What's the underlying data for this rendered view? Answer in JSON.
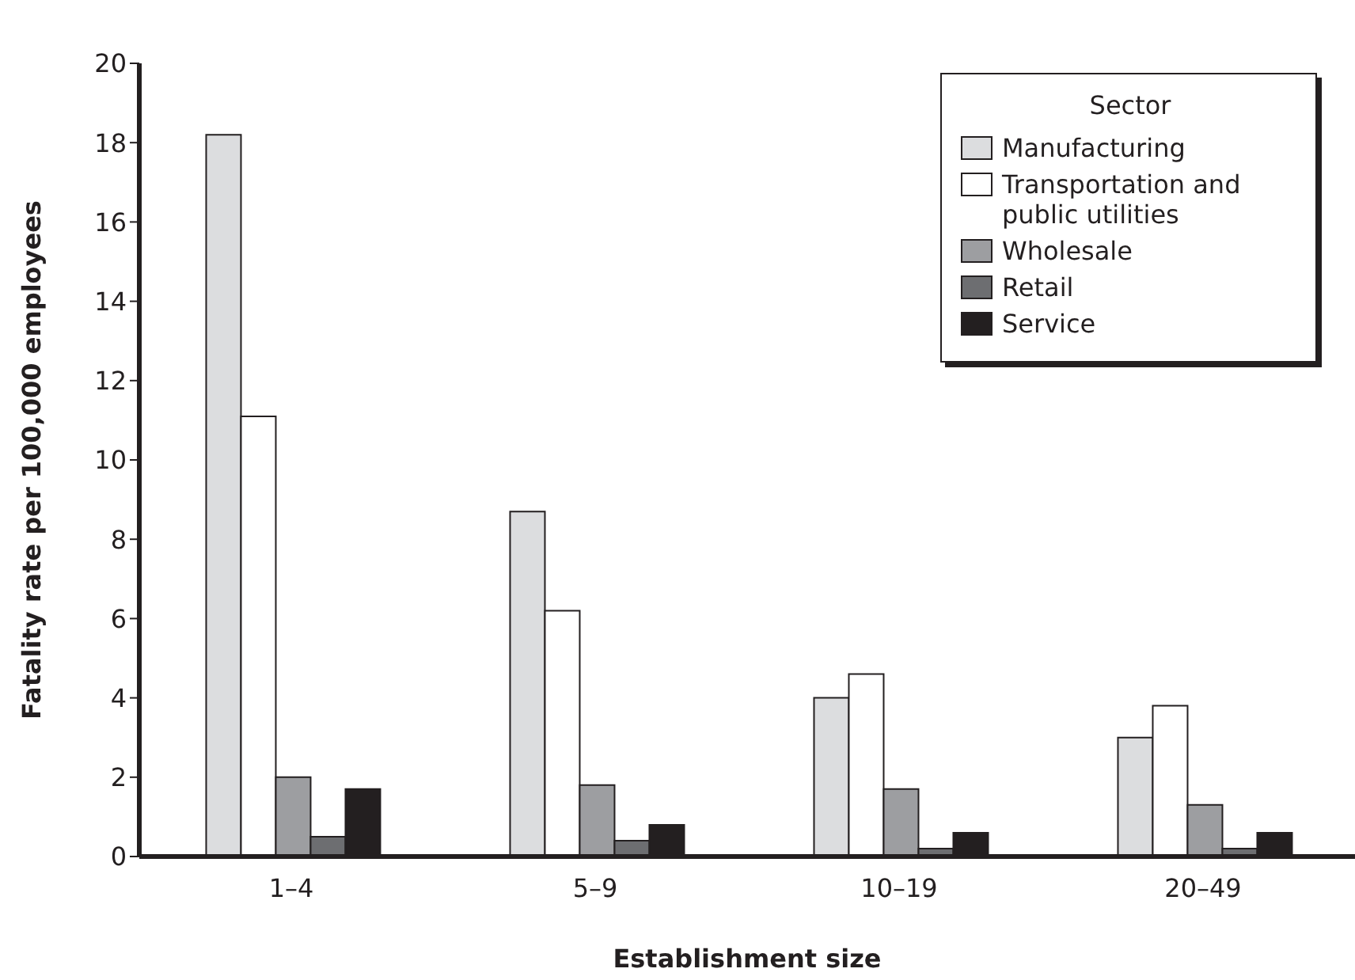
{
  "chart_data": {
    "type": "bar",
    "xlabel": "Establishment size",
    "ylabel": "Fatality rate per 100,000 employees",
    "legend_title": "Sector",
    "categories": [
      "1–4",
      "5–9",
      "10–19",
      "20–49"
    ],
    "series": [
      {
        "name": "Manufacturing",
        "color": "#dcdddf",
        "values": [
          18.2,
          8.7,
          4.0,
          3.0
        ]
      },
      {
        "name": "Transportation and public utilities",
        "color": "#ffffff",
        "values": [
          11.1,
          6.2,
          4.6,
          3.8
        ]
      },
      {
        "name": "Wholesale",
        "color": "#9d9ea1",
        "values": [
          2.0,
          1.8,
          1.7,
          1.3
        ]
      },
      {
        "name": "Retail",
        "color": "#6d6e71",
        "values": [
          0.5,
          0.4,
          0.2,
          0.2
        ]
      },
      {
        "name": "Service",
        "color": "#231f20",
        "values": [
          1.7,
          0.8,
          0.6,
          0.6
        ]
      }
    ],
    "ylim": [
      0,
      20
    ],
    "yticks": [
      0,
      2,
      4,
      6,
      8,
      10,
      12,
      14,
      16,
      18,
      20
    ],
    "grid": false,
    "legend": "top right"
  }
}
